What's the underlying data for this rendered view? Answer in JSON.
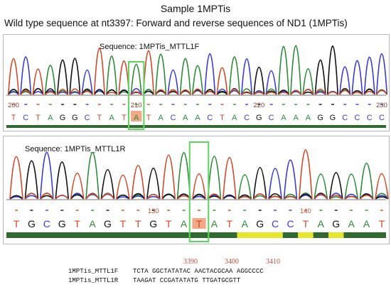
{
  "title": "Sample 1MPTis",
  "subtitle": "Wild type sequence at nt3397: Forward and reverse sequences of ND1 (1MPTis)",
  "colors": {
    "A": "#2e8b3a",
    "C": "#3b3bd6",
    "G": "#111111",
    "T": "#d24a2a",
    "highlight": "#f2a987",
    "box": "#5ed45e",
    "bar_dark": "#2f6b2f",
    "bar_yellow": "#e6e62a"
  },
  "panels": [
    {
      "label": "Sequence: 1MPTis_MTTL1F",
      "bases": "TCTAGGCTATATACAACTACGCAAAGGCCCC",
      "highlight_index": 10,
      "ticks": [
        {
          "label": "200",
          "index": 0
        },
        {
          "label": "210",
          "index": 10
        },
        {
          "label": "220",
          "index": 20
        },
        {
          "label": "230",
          "index": 30
        }
      ],
      "bar": [
        {
          "start": 0,
          "end": 31,
          "state": "good"
        }
      ]
    },
    {
      "label": "Sequence: 1MPTis_MTTL1R",
      "bases": "TGCGTAGTTGTATATAGCCTAGAAT",
      "highlight_index": 12,
      "ticks": [
        {
          "label": "130",
          "index": 9
        },
        {
          "label": "140",
          "index": 19
        }
      ],
      "bar": [
        {
          "start": 0,
          "end": 15,
          "state": "good"
        },
        {
          "start": 15,
          "end": 18,
          "state": "low"
        },
        {
          "start": 18,
          "end": 19,
          "state": "good"
        },
        {
          "start": 19,
          "end": 20,
          "state": "low"
        },
        {
          "start": 20,
          "end": 21,
          "state": "good"
        },
        {
          "start": 21,
          "end": 22,
          "state": "low"
        },
        {
          "start": 22,
          "end": 25,
          "state": "good"
        }
      ]
    }
  ],
  "alignment": {
    "positions": [
      "3390",
      "3400",
      "3410"
    ],
    "rows": [
      {
        "name": "1MPTis_MTTL1F",
        "seq": "TCTA GGCTATATAC AACTACGCAA AGGCCCC"
      },
      {
        "name": "1MPTis_MTTL1R",
        "seq": "TAAGAT CCGATATATG TTGATGCGTT"
      }
    ]
  }
}
